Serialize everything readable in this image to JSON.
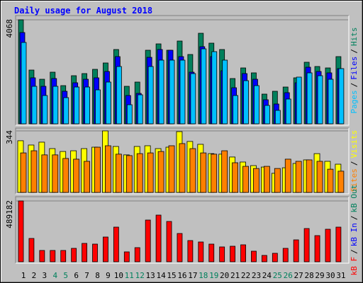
{
  "title": "Daily usage for August 2018",
  "separator": "/",
  "chart_data": [
    {
      "type": "bar",
      "legend_reverse": true,
      "ylim": [
        0,
        4068
      ],
      "yticks": [
        4068
      ],
      "series": [
        {
          "name": "Hits",
          "color": "#00805c",
          "values": [
            4068,
            2103,
            1743,
            2020,
            1494,
            1882,
            1965,
            2131,
            2380,
            2906,
            1467,
            1633,
            2878,
            3127,
            2878,
            3238,
            2712,
            3542,
            3155,
            2906,
            1771,
            2186,
            1993,
            1162,
            1273,
            1439,
            1799,
            2408,
            2242,
            2186,
            2629
          ]
        },
        {
          "name": "Files",
          "color": "#0000ff",
          "values": [
            3570,
            1799,
            1467,
            1771,
            1273,
            1605,
            1743,
            1799,
            2048,
            2629,
            1107,
            1190,
            2601,
            2906,
            2878,
            2629,
            2020,
            3017,
            2629,
            2076,
            1411,
            1965,
            1743,
            941,
            775,
            1218,
            1605,
            2214,
            2048,
            1993,
            2159
          ]
        },
        {
          "name": "Pages",
          "color": "#00c0ff",
          "values": [
            3183,
            1467,
            1107,
            1467,
            1024,
            1439,
            1439,
            1328,
            1633,
            2242,
            747,
            1135,
            2242,
            2491,
            2491,
            2491,
            1965,
            2933,
            2823,
            2491,
            1107,
            1688,
            1494,
            720,
            526,
            969,
            1827,
            1993,
            1882,
            1743,
            2159
          ]
        }
      ]
    },
    {
      "type": "bar",
      "legend_reverse": true,
      "ylim": [
        0,
        344
      ],
      "yticks": [
        344
      ],
      "series": [
        {
          "name": "Visits",
          "color": "#ffff00",
          "values": [
            289,
            265,
            281,
            245,
            229,
            233,
            245,
            253,
            344,
            257,
            210,
            257,
            261,
            245,
            253,
            340,
            285,
            269,
            217,
            214,
            198,
            170,
            150,
            142,
            107,
            138,
            162,
            182,
            217,
            174,
            158
          ]
        },
        {
          "name": "Sites",
          "color": "#ff8000",
          "values": [
            221,
            233,
            210,
            210,
            190,
            186,
            174,
            253,
            261,
            214,
            206,
            217,
            221,
            229,
            261,
            273,
            245,
            221,
            214,
            233,
            166,
            146,
            134,
            146,
            134,
            186,
            174,
            182,
            174,
            130,
            119
          ]
        }
      ]
    },
    {
      "type": "bar",
      "ylim": [
        0,
        489182
      ],
      "yticks": [
        489182
      ],
      "categories": [
        "1",
        "2",
        "3",
        "4",
        "5",
        "6",
        "7",
        "8",
        "9",
        "10",
        "11",
        "12",
        "13",
        "14",
        "15",
        "16",
        "17",
        "18",
        "19",
        "20",
        "21",
        "22",
        "23",
        "24",
        "25",
        "26",
        "27",
        "28",
        "29",
        "30",
        "31"
      ],
      "category_colors": [
        "#000000",
        "#000000",
        "#000000",
        "#00805c",
        "#00805c",
        "#000000",
        "#000000",
        "#000000",
        "#000000",
        "#000000",
        "#00805c",
        "#00805c",
        "#000000",
        "#000000",
        "#000000",
        "#000000",
        "#000000",
        "#00805c",
        "#00805c",
        "#000000",
        "#000000",
        "#000000",
        "#000000",
        "#000000",
        "#00805c",
        "#00805c",
        "#000000",
        "#000000",
        "#000000",
        "#000000",
        "#000000"
      ],
      "series": [
        {
          "name": "kB F",
          "color": "#ff0000",
          "values": [
            489182,
            187709,
            91010,
            91010,
            91010,
            108074,
            147891,
            142203,
            199084,
            278718,
            79634,
            113763,
            335600,
            375417,
            324223,
            227525,
            170644,
            159268,
            142203,
            119451,
            125139,
            136516,
            85322,
            51193,
            68258,
            108074,
            176332,
            267341,
            210460,
            261653,
            278718
          ]
        }
      ],
      "other_series": [
        {
          "name": "kB In",
          "color": "#0000ff"
        },
        {
          "name": "kB Out",
          "color": "#00805c"
        }
      ]
    }
  ]
}
